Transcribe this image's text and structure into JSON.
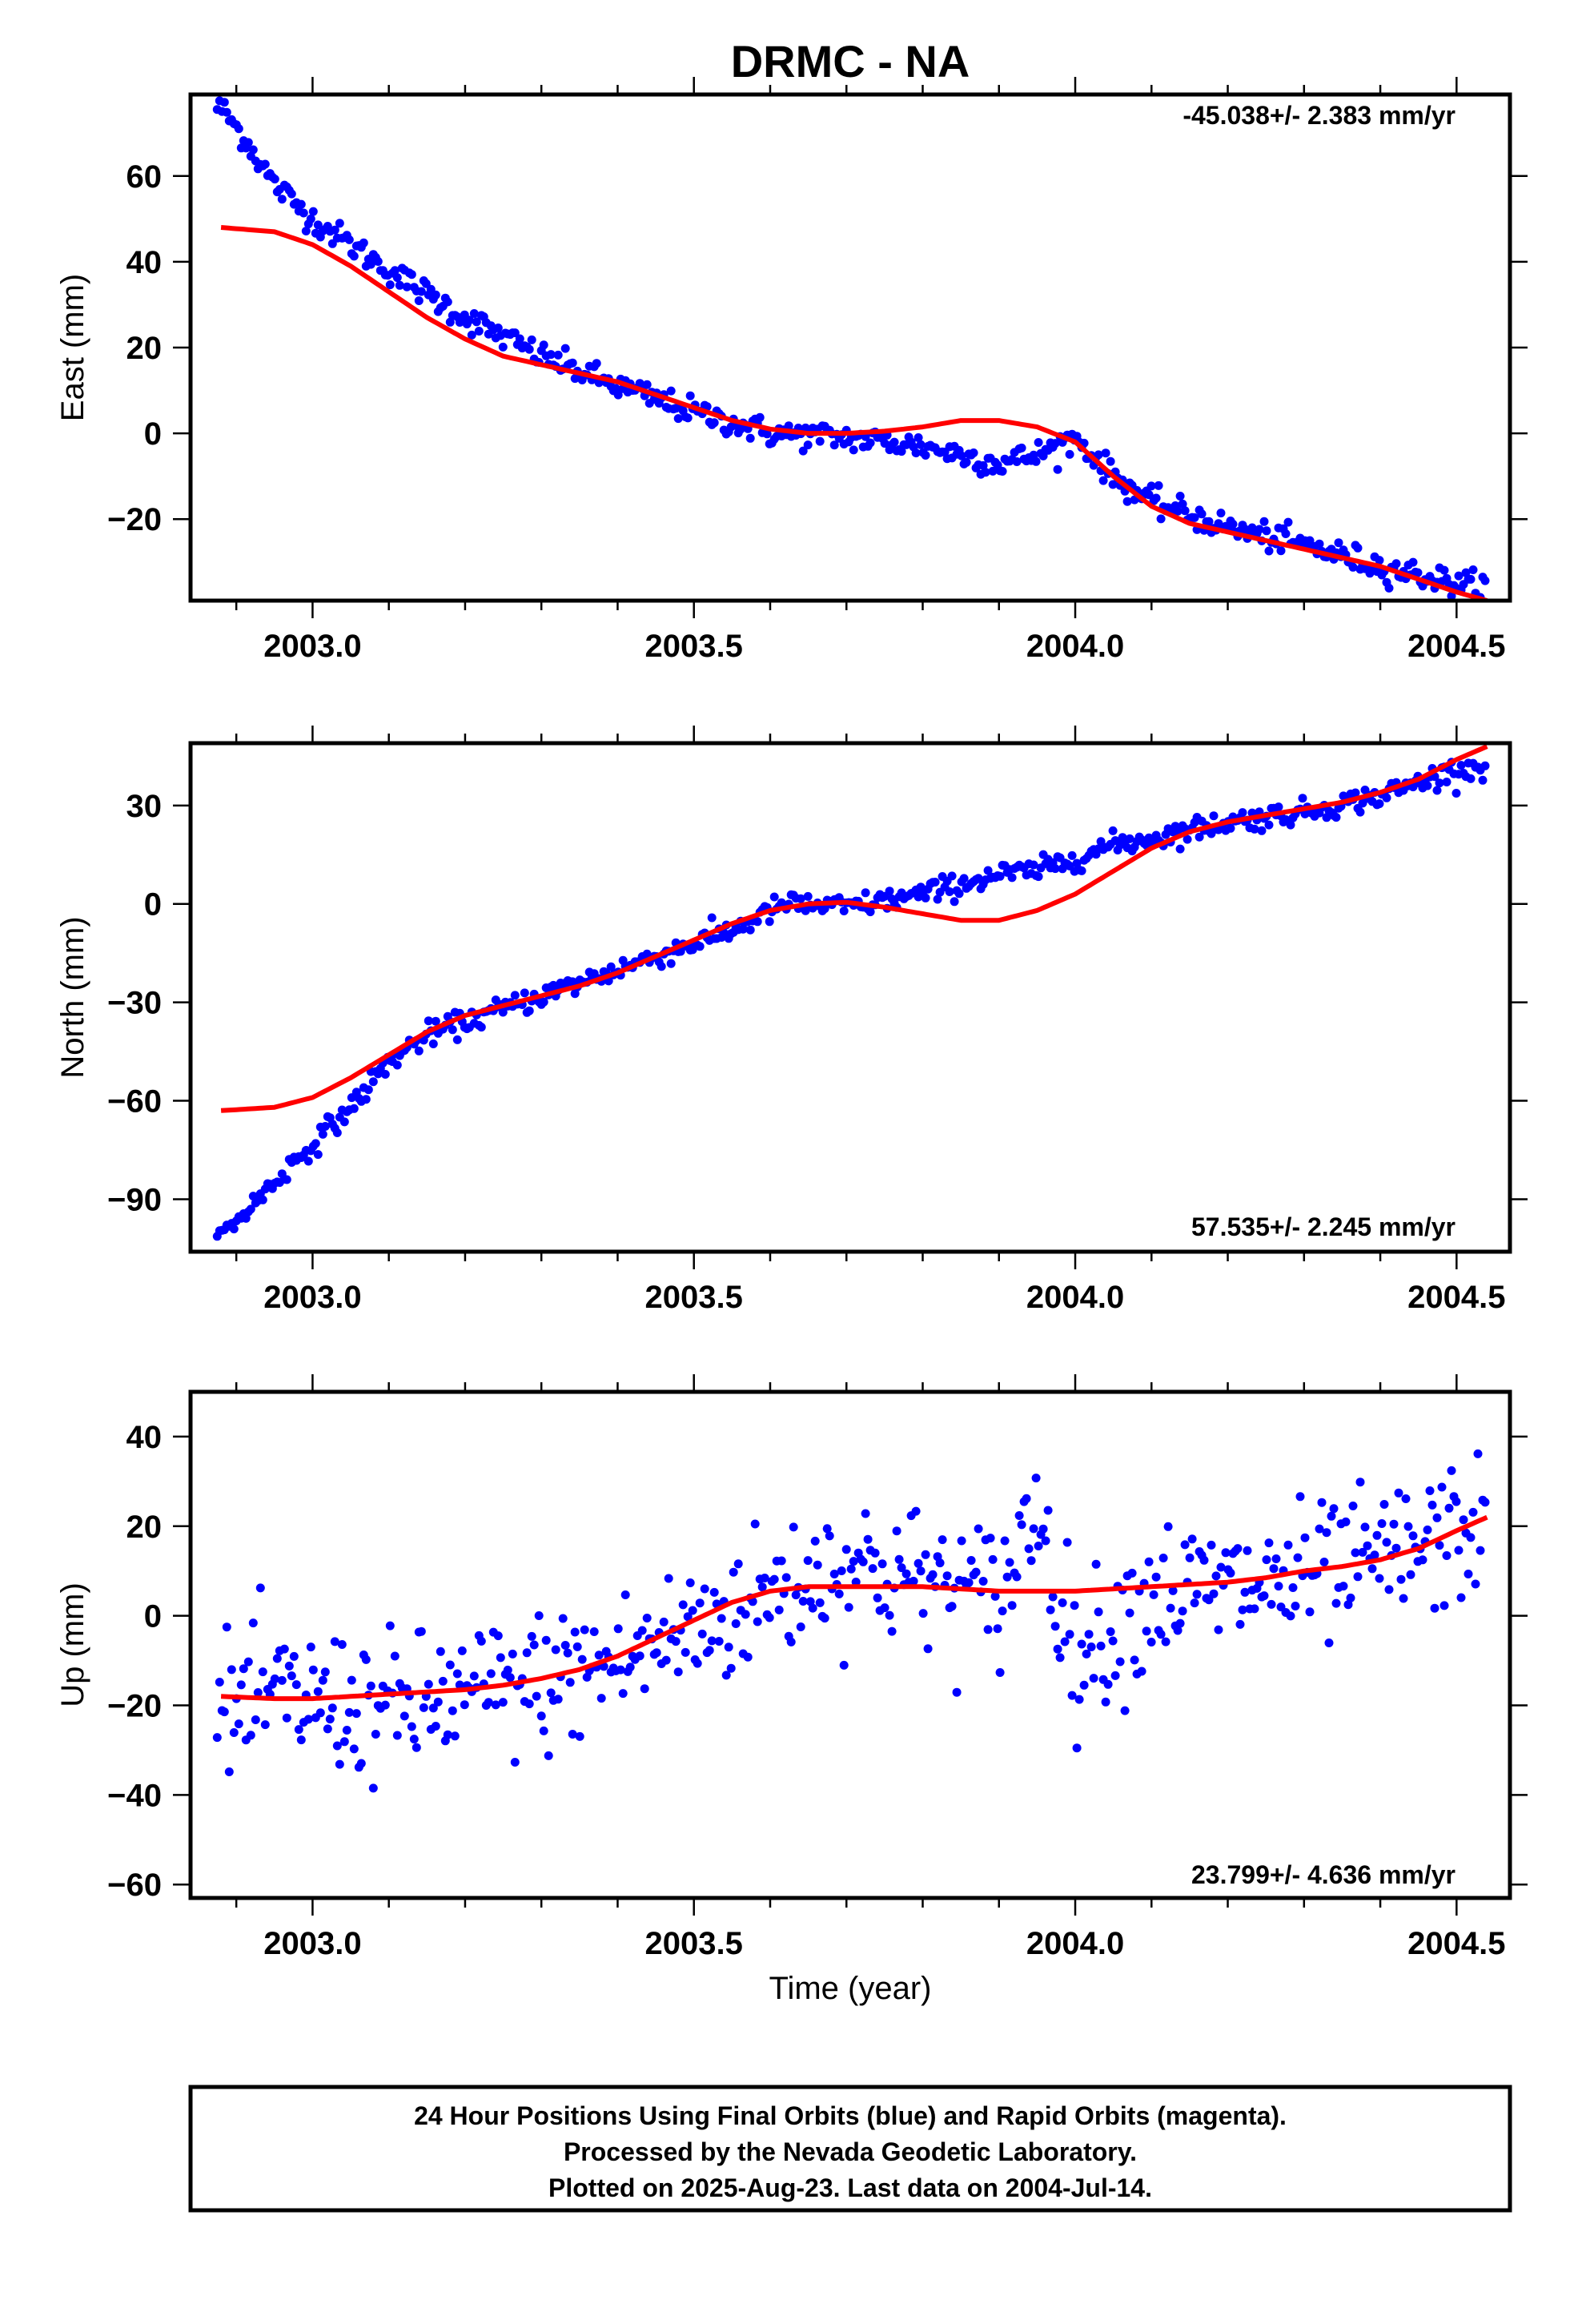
{
  "title": "DRMC - NA",
  "colors": {
    "points": "#0000ff",
    "fit": "#ff0000",
    "frame": "#000000"
  },
  "x_ticklabels": [
    "2003.0",
    "2003.5",
    "2004.0",
    "2004.5"
  ],
  "xlabel": "Time (year)",
  "chart_data": [
    {
      "type": "scatter",
      "component": "east",
      "ylabel": "East (mm)",
      "rate": "-45.038+/- 2.383 mm/yr",
      "xlim": [
        2002.84,
        2004.57
      ],
      "ylim": [
        -39,
        79
      ],
      "yticks": [
        -20,
        0,
        20,
        40,
        60
      ],
      "yticklabels": [
        "−20",
        "0",
        "20",
        "40",
        "60"
      ],
      "grid": false,
      "observations_model": {
        "x": [
          2002.88,
          2002.91,
          2002.95,
          2003.0,
          2003.1,
          2003.2,
          2003.3,
          2003.4,
          2003.5,
          2003.6,
          2003.7,
          2003.8,
          2003.9,
          2003.95,
          2004.0,
          2004.05,
          2004.1,
          2004.2,
          2004.3,
          2004.4,
          2004.5,
          2004.54
        ],
        "y": [
          76,
          69,
          58,
          50,
          38,
          27,
          18,
          11,
          5,
          0,
          -1,
          -3,
          -7,
          -5,
          -1,
          -10,
          -16,
          -22,
          -26,
          -31,
          -35,
          -36
        ]
      },
      "fit": {
        "x": [
          2002.88,
          2002.95,
          2003.0,
          2003.05,
          2003.1,
          2003.15,
          2003.2,
          2003.25,
          2003.3,
          2003.35,
          2003.4,
          2003.45,
          2003.5,
          2003.55,
          2003.6,
          2003.65,
          2003.7,
          2003.75,
          2003.8,
          2003.85,
          2003.9,
          2003.95,
          2004.0,
          2004.05,
          2004.1,
          2004.15,
          2004.2,
          2004.25,
          2004.3,
          2004.35,
          2004.4,
          2004.45,
          2004.5,
          2004.54
        ],
        "y": [
          48,
          47,
          44,
          39,
          33,
          27,
          22,
          18,
          16,
          14,
          12,
          9,
          6,
          3,
          1,
          0,
          0,
          0.5,
          1.5,
          3,
          3,
          1.5,
          -2,
          -10,
          -17,
          -21,
          -23,
          -25,
          -27,
          -29,
          -31,
          -34,
          -37,
          -39
        ]
      }
    },
    {
      "type": "scatter",
      "component": "north",
      "ylabel": "North (mm)",
      "rate": "57.535+/- 2.245 mm/yr",
      "xlim": [
        2002.84,
        2004.57
      ],
      "ylim": [
        -106,
        49
      ],
      "yticks": [
        -90,
        -60,
        -30,
        0,
        30
      ],
      "yticklabels": [
        "−90",
        "−60",
        "−30",
        "0",
        "30"
      ],
      "grid": false,
      "observations_model": {
        "x": [
          2002.88,
          2002.92,
          2002.97,
          2003.05,
          2003.1,
          2003.15,
          2003.25,
          2003.35,
          2003.45,
          2003.55,
          2003.62,
          2003.7,
          2003.8,
          2003.9,
          2003.95,
          2004.0,
          2004.05,
          2004.1,
          2004.2,
          2004.3,
          2004.4,
          2004.5,
          2004.54
        ],
        "y": [
          -101,
          -92,
          -80,
          -62,
          -48,
          -40,
          -32,
          -24,
          -16,
          -8,
          0,
          -1,
          3,
          9,
          10,
          14,
          18,
          20,
          25,
          28,
          33,
          41,
          42
        ]
      },
      "fit": {
        "x": [
          2002.88,
          2002.95,
          2003.0,
          2003.05,
          2003.1,
          2003.15,
          2003.2,
          2003.25,
          2003.3,
          2003.35,
          2003.4,
          2003.45,
          2003.5,
          2003.55,
          2003.6,
          2003.65,
          2003.7,
          2003.75,
          2003.8,
          2003.85,
          2003.9,
          2003.95,
          2004.0,
          2004.05,
          2004.1,
          2004.15,
          2004.2,
          2004.25,
          2004.3,
          2004.35,
          2004.4,
          2004.45,
          2004.5,
          2004.54
        ],
        "y": [
          -63,
          -62,
          -59,
          -53,
          -46,
          -39,
          -34,
          -31,
          -28,
          -25,
          -21,
          -16,
          -11,
          -6,
          -2,
          0,
          0.5,
          -1,
          -3,
          -5,
          -5,
          -2,
          3,
          10,
          17,
          22,
          25,
          27,
          29,
          31,
          34,
          38,
          44,
          48
        ]
      }
    },
    {
      "type": "scatter",
      "component": "up",
      "ylabel": "Up (mm)",
      "rate": "23.799+/- 4.636 mm/yr",
      "xlim": [
        2002.84,
        2004.57
      ],
      "ylim": [
        -63,
        50
      ],
      "yticks": [
        -60,
        -40,
        -20,
        0,
        20,
        40
      ],
      "yticklabels": [
        "−60",
        "−40",
        "−20",
        "0",
        "20",
        "40"
      ],
      "grid": false,
      "observations_model": {
        "x": [
          2002.88,
          2002.95,
          2003.0,
          2003.05,
          2003.1,
          2003.2,
          2003.3,
          2003.4,
          2003.5,
          2003.6,
          2003.7,
          2003.8,
          2003.9,
          2003.95,
          2004.0,
          2004.1,
          2004.2,
          2004.3,
          2004.4,
          2004.5,
          2004.54
        ],
        "y": [
          -22,
          -18,
          -19,
          -20,
          -21,
          -18,
          -15,
          -10,
          -3,
          5,
          12,
          8,
          4,
          25,
          -10,
          5,
          6,
          8,
          12,
          18,
          22
        ]
      },
      "fit": {
        "x": [
          2002.88,
          2002.95,
          2003.0,
          2003.05,
          2003.1,
          2003.15,
          2003.2,
          2003.25,
          2003.3,
          2003.35,
          2003.4,
          2003.45,
          2003.5,
          2003.55,
          2003.6,
          2003.65,
          2003.7,
          2003.75,
          2003.8,
          2003.85,
          2003.9,
          2003.95,
          2004.0,
          2004.05,
          2004.1,
          2004.15,
          2004.2,
          2004.25,
          2004.3,
          2004.35,
          2004.4,
          2004.45,
          2004.5,
          2004.54
        ],
        "y": [
          -18,
          -18.5,
          -18.5,
          -18,
          -17.5,
          -17,
          -16.5,
          -15.5,
          -14,
          -12,
          -9,
          -5,
          -1,
          3,
          5.5,
          6.5,
          6.5,
          6.5,
          6.5,
          6,
          5.5,
          5.5,
          5.5,
          6,
          6.5,
          7,
          7.5,
          8.5,
          10,
          11,
          12.5,
          15,
          19,
          22
        ]
      }
    }
  ],
  "footer": {
    "line1": "24 Hour Positions Using Final Orbits (blue) and Rapid Orbits (magenta).",
    "line2": "Processed by the Nevada Geodetic Laboratory.",
    "line3": "Plotted on 2025-Aug-23. Last data on 2004-Jul-14."
  }
}
